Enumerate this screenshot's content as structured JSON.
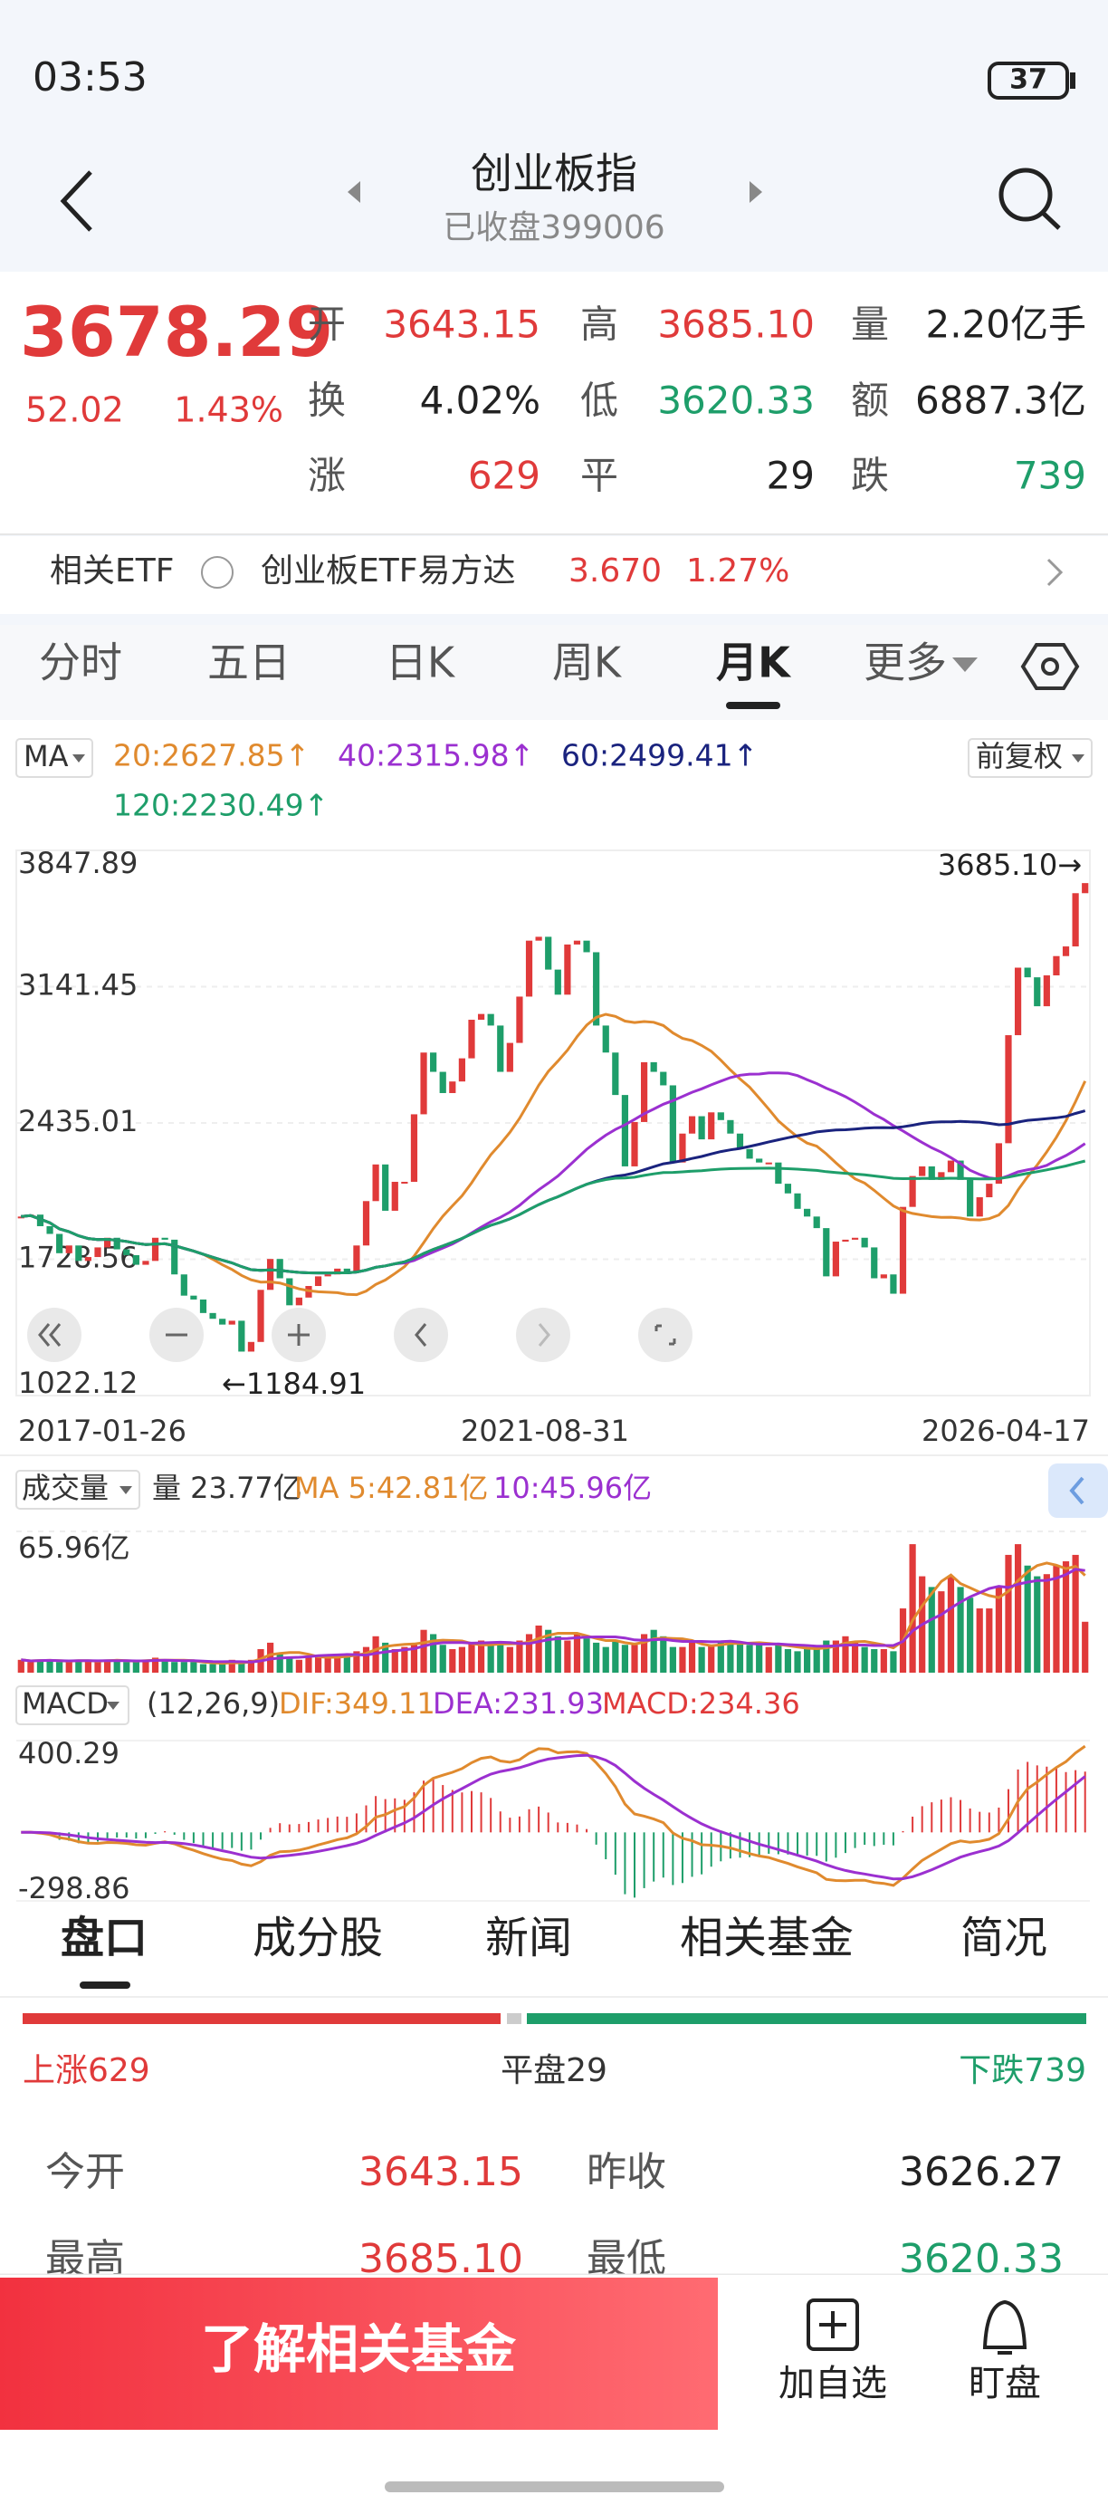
{
  "status_bar": {
    "time": "03:53",
    "battery": "37"
  },
  "header": {
    "title": "创业板指",
    "subtitle": "已收盘399006"
  },
  "quote": {
    "price": "3678.29",
    "change": "52.02",
    "change_pct": "1.43%",
    "fields": [
      {
        "label": "开",
        "value": "3643.15"
      },
      {
        "label": "高",
        "value": "3685.10"
      },
      {
        "label": "量",
        "value": "2.20亿手"
      },
      {
        "label": "换",
        "value": "4.02%"
      },
      {
        "label": "低",
        "value": "3620.33"
      },
      {
        "label": "额",
        "value": "6887.3亿"
      },
      {
        "label": "涨",
        "value": "629"
      },
      {
        "label": "平",
        "value": "29"
      },
      {
        "label": "跌",
        "value": "739"
      }
    ]
  },
  "etf": {
    "label": "相关ETF",
    "name": "创业板ETF易方达",
    "price": "3.670",
    "pct": "1.27%"
  },
  "tabs": [
    "分时",
    "五日",
    "日K",
    "周K",
    "月K",
    "更多"
  ],
  "chart_data": {
    "type": "candlestick",
    "indicator_label": "MA",
    "adjust": "前复权",
    "ma_labels": [
      {
        "text": "20:2627.85↑",
        "color": "#e08a2e"
      },
      {
        "text": "40:2315.98↑",
        "color": "#9b30d0"
      },
      {
        "text": "60:2499.41↑",
        "color": "#1a237e"
      },
      {
        "text": "120:2230.49↑",
        "color": "#1e9e6a"
      }
    ],
    "closes": [
      1950,
      1960,
      1900,
      1860,
      1760,
      1800,
      1720,
      1740,
      1790,
      1840,
      1780,
      1750,
      1700,
      1720,
      1840,
      1830,
      1650,
      1540,
      1520,
      1450,
      1420,
      1390,
      1410,
      1250,
      1300,
      1570,
      1730,
      1630,
      1490,
      1530,
      1590,
      1640,
      1650,
      1680,
      1660,
      1800,
      2030,
      2220,
      1980,
      2130,
      2130,
      2480,
      2800,
      2700,
      2590,
      2650,
      2770,
      2970,
      3000,
      2940,
      2700,
      2850,
      3090,
      3380,
      3400,
      3230,
      3100,
      3360,
      3380,
      3320,
      2940,
      2800,
      2580,
      2210,
      2440,
      2750,
      2700,
      2630,
      2230,
      2380,
      2470,
      2350,
      2490,
      2450,
      2380,
      2300,
      2250,
      2230,
      2230,
      2120,
      2070,
      1990,
      1950,
      1890,
      1640,
      1820,
      1830,
      1840,
      1790,
      1630,
      1650,
      1550,
      2000,
      2160,
      2210,
      2140,
      2180,
      2240,
      2140,
      1950,
      2050,
      2120,
      2330,
      2890,
      3240,
      3190,
      3040,
      3200,
      3300,
      3350,
      3626,
      3678.29
    ],
    "ylim": [
      1022.12,
      3847.89
    ],
    "yticks": [
      3847.89,
      3141.45,
      2435.01,
      1728.56,
      1022.12
    ],
    "x_labels": [
      "2017-01-26",
      "2021-08-31",
      "2026-04-17"
    ],
    "annotations": {
      "high": "3685.10→",
      "low": "←1184.91"
    },
    "up_color": "#e03a3a",
    "down_color": "#1e9e6a",
    "volume": {
      "label": "成交量",
      "summary": "量 23.77亿",
      "ma5": "MA 5:42.81亿",
      "ma10": "10:45.96亿",
      "values": [
        6,
        5,
        6,
        6,
        5,
        5,
        6,
        6,
        5,
        6,
        6,
        5,
        5,
        6,
        7,
        6,
        5,
        5,
        5,
        4,
        4,
        4,
        6,
        5,
        6,
        11,
        14,
        9,
        7,
        6,
        7,
        8,
        8,
        7,
        8,
        10,
        12,
        17,
        14,
        11,
        12,
        13,
        20,
        18,
        13,
        11,
        12,
        14,
        15,
        13,
        13,
        12,
        15,
        18,
        22,
        20,
        17,
        15,
        18,
        16,
        14,
        12,
        15,
        13,
        13,
        18,
        20,
        17,
        12,
        12,
        14,
        12,
        13,
        14,
        15,
        14,
        13,
        14,
        12,
        13,
        11,
        10,
        11,
        11,
        15,
        15,
        17,
        14,
        12,
        11,
        11,
        10,
        30,
        60,
        45,
        40,
        38,
        45,
        40,
        35,
        30,
        30,
        40,
        55,
        60,
        50,
        45,
        46,
        50,
        52,
        55,
        23.77
      ],
      "ylim": [
        0,
        65.96
      ],
      "yticks": [
        {
          "value": 65.96,
          "label": "65.96亿"
        }
      ]
    },
    "macd": {
      "label": "MACD",
      "params": "(12,26,9)",
      "dif": "DIF:349.11",
      "dea": "DEA:231.93",
      "macd": "MACD:234.36",
      "ylim": [
        -298.86,
        400.29
      ],
      "yticks": [
        400.29,
        -298.86
      ]
    }
  },
  "bottom_tabs": [
    "盘口",
    "成分股",
    "新闻",
    "相关基金",
    "简况"
  ],
  "breadth": {
    "up": "上涨629",
    "flat": "平盘29",
    "down": "下跌739"
  },
  "table": [
    [
      "今开",
      "3643.15",
      "昨收",
      "3626.27"
    ],
    [
      "最高",
      "3685.10",
      "最低",
      "3620.33"
    ]
  ],
  "footer": {
    "button": "了解相关基金",
    "add": "加自选",
    "watch": "盯盘"
  }
}
